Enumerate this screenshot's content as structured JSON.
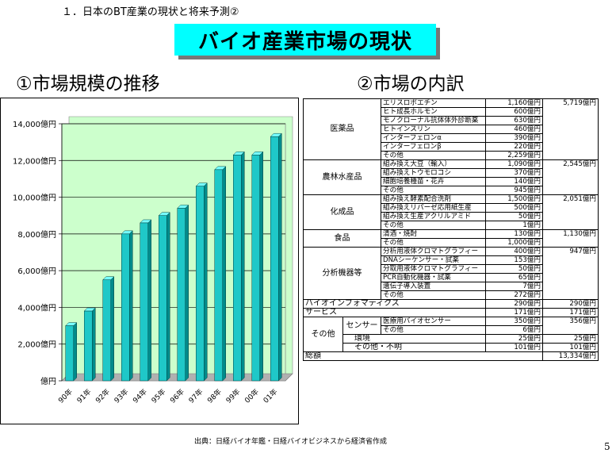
{
  "header": "１．日本のBT産業の現状と将来予測②",
  "title": "バイオ産業市場の現状",
  "section1": "①市場規模の推移",
  "section2": "②市場の内訳",
  "chart_data": {
    "type": "bar",
    "categories": [
      "90年",
      "91年",
      "92年",
      "93年",
      "94年",
      "95年",
      "96年",
      "97年",
      "98年",
      "99年",
      "00年",
      "01年"
    ],
    "values": [
      3000,
      3800,
      5500,
      8000,
      8600,
      9000,
      9400,
      10600,
      11500,
      12300,
      12300,
      13300
    ],
    "yticks": [
      "14,000億円",
      "12,000億円",
      "10,000億円",
      "8,000億円",
      "6,000億円",
      "4,000億円",
      "2,000億円",
      "億円"
    ],
    "ylim": [
      0,
      14000
    ],
    "grid": true
  },
  "breakdown": [
    {
      "category": "医薬品",
      "total": "5,719億円",
      "items": [
        {
          "name": "エリスロポエチン",
          "value": "1,160億円"
        },
        {
          "name": "ヒト成長ホルモン",
          "value": "600億円"
        },
        {
          "name": "モノクローナル抗体体外診断薬",
          "value": "630億円"
        },
        {
          "name": "ヒトインスリン",
          "value": "460億円"
        },
        {
          "name": "インターフェロンα",
          "value": "390億円"
        },
        {
          "name": "インターフェロンβ",
          "value": "220億円"
        },
        {
          "name": "その他",
          "value": "2,259億円"
        }
      ]
    },
    {
      "category": "農林水産品",
      "total": "2,545億円",
      "items": [
        {
          "name": "組み換え大豆（輸入）",
          "value": "1,090億円"
        },
        {
          "name": "組み換えトウモロコシ",
          "value": "370億円"
        },
        {
          "name": "細胞培養種苗・花卉",
          "value": "140億円"
        },
        {
          "name": "その他",
          "value": "945億円"
        }
      ]
    },
    {
      "category": "化成品",
      "total": "2,051億円",
      "items": [
        {
          "name": "組み換え酵素配合洗剤",
          "value": "1,500億円"
        },
        {
          "name": "組み換えリパーゼ応用紙生産",
          "value": "500億円"
        },
        {
          "name": "組み換え生産アクリルアミド",
          "value": "50億円"
        },
        {
          "name": "その他",
          "value": "1億円"
        }
      ]
    },
    {
      "category": "食品",
      "total": "1,130億円",
      "items": [
        {
          "name": "清酒・焼酎",
          "value": "130億円"
        },
        {
          "name": "その他",
          "value": "1,000億円"
        }
      ]
    },
    {
      "category": "分析機器等",
      "total": "947億円",
      "items": [
        {
          "name": "分析用液体クロマトグラフィー",
          "value": "400億円"
        },
        {
          "name": "DNAシーケンサー・試薬",
          "value": "153億円"
        },
        {
          "name": "分取用液体クロマトグラフィー",
          "value": "50億円"
        },
        {
          "name": "PCR自動化機器・試薬",
          "value": "65億円"
        },
        {
          "name": "遺伝子導入装置",
          "value": "7億円"
        },
        {
          "name": "その他",
          "value": "272億円"
        }
      ]
    }
  ],
  "bioinformatics": {
    "label": "バイオインフォマティクス",
    "value": "290億円",
    "total": "290億円"
  },
  "service": {
    "label": "サービス",
    "value": "171億円",
    "total": "171億円"
  },
  "other": {
    "label": "その他",
    "sensor": {
      "label": "センサー",
      "total": "356億円",
      "items": [
        {
          "name": "医療用バイオセンサー",
          "value": "350億円"
        },
        {
          "name": "その他",
          "value": "6億円"
        }
      ]
    },
    "environment": {
      "label": "環境",
      "value": "25億円",
      "total": "25億円"
    },
    "misc": {
      "label": "その他・不明",
      "value": "101億円",
      "total": "101億円"
    }
  },
  "grand_total": {
    "label": "総額",
    "value": "13,334億円"
  },
  "source": "出典：日経バイオ年鑑・日経バイオビジネスから経済省作成",
  "page": "5"
}
